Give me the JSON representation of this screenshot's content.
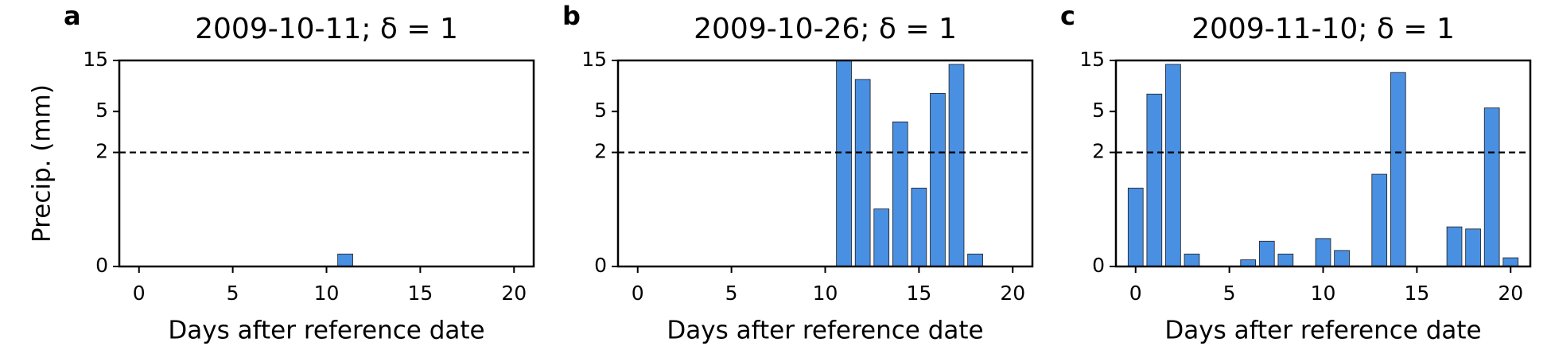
{
  "chart_data": [
    {
      "type": "bar",
      "panel_label": "a",
      "title": "2009-10-11; δ = 1",
      "xlabel": "Days after reference date",
      "ylabel": "Precip. (mm)",
      "x": [
        0,
        1,
        2,
        3,
        4,
        5,
        6,
        7,
        8,
        9,
        10,
        11,
        12,
        13,
        14,
        15,
        16,
        17,
        18,
        19,
        20
      ],
      "values": [
        0,
        0,
        0,
        0,
        0,
        0,
        0,
        0,
        0,
        0,
        0,
        0.06,
        0,
        0,
        0,
        0,
        0,
        0,
        0,
        0,
        0
      ],
      "color": "#4a90e2",
      "xlim": [
        -1.05,
        21.05
      ],
      "xticks": [
        0,
        5,
        10,
        15,
        20
      ],
      "ylim": [
        0,
        15
      ],
      "yticks": [
        0,
        2,
        5,
        15
      ],
      "yscale": "symlog",
      "threshold": 2
    },
    {
      "type": "bar",
      "panel_label": "b",
      "title": "2009-10-26; δ = 1",
      "xlabel": "Days after reference date",
      "x": [
        0,
        1,
        2,
        3,
        4,
        5,
        6,
        7,
        8,
        9,
        10,
        11,
        12,
        13,
        14,
        15,
        16,
        17,
        18,
        19,
        20
      ],
      "values": [
        0,
        0,
        0,
        0,
        0,
        0,
        0,
        0,
        0,
        0,
        0,
        15,
        10.0,
        0.47,
        3.98,
        0.84,
        7.4,
        13.8,
        0.06,
        0,
        0
      ],
      "color": "#4a90e2",
      "xlim": [
        -1.05,
        21.05
      ],
      "xticks": [
        0,
        5,
        10,
        15,
        20
      ],
      "ylim": [
        0,
        15
      ],
      "yticks": [
        0,
        2,
        5,
        15
      ],
      "yscale": "symlog",
      "threshold": 2
    },
    {
      "type": "bar",
      "panel_label": "c",
      "title": "2009-11-10; δ = 1",
      "xlabel": "Days after reference date",
      "x": [
        0,
        1,
        2,
        3,
        4,
        5,
        6,
        7,
        8,
        9,
        10,
        11,
        12,
        13,
        14,
        15,
        16,
        17,
        18,
        19,
        20
      ],
      "values": [
        0.84,
        7.3,
        13.8,
        0.06,
        0,
        0,
        0.03,
        0.14,
        0.06,
        0,
        0.16,
        0.08,
        0,
        1.19,
        11.6,
        0,
        0,
        0.26,
        0.24,
        5.4,
        0.04
      ],
      "color": "#4a90e2",
      "xlim": [
        -1.05,
        21.05
      ],
      "xticks": [
        0,
        5,
        10,
        15,
        20
      ],
      "ylim": [
        0,
        15
      ],
      "yticks": [
        0,
        2,
        5,
        15
      ],
      "yscale": "symlog",
      "threshold": 2
    }
  ]
}
